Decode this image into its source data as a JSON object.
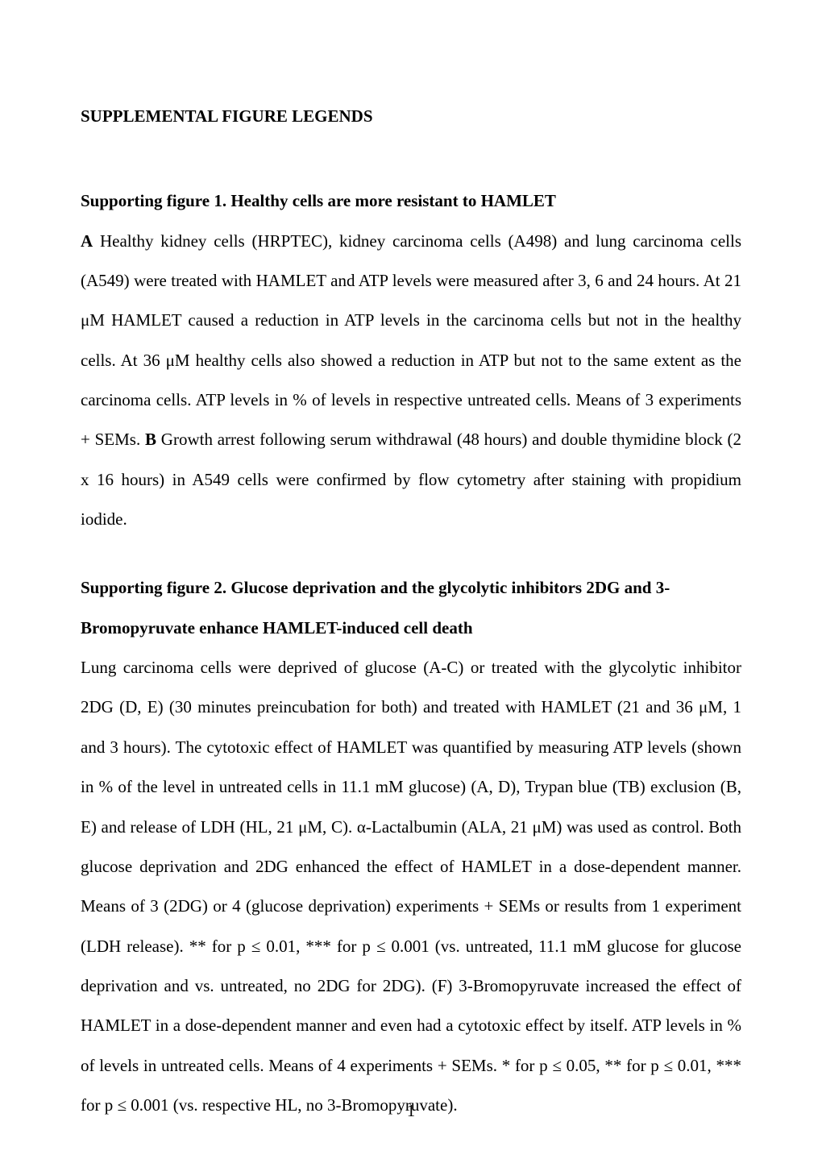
{
  "headings": {
    "main": "SUPPLEMENTAL FIGURE LEGENDS",
    "fig1": "Supporting figure 1. Healthy cells are more resistant to HAMLET",
    "fig2_line1": "Supporting figure 2. Glucose deprivation and the glycolytic inhibitors 2DG and 3-",
    "fig2_line2": "Bromopyruvate enhance HAMLET-induced cell death"
  },
  "fig1": {
    "labelA": "A",
    "textA": " Healthy kidney cells (HRPTEC), kidney carcinoma cells (A498) and lung carcinoma cells (A549) were treated with HAMLET and ATP levels were measured after 3, 6 and 24 hours. At 21 μM HAMLET caused a reduction in ATP levels in the carcinoma cells but not in the healthy cells. At 36 μM healthy cells also showed a reduction in ATP but not to the same extent as the carcinoma cells. ATP levels in % of levels in respective untreated cells. Means of 3 experiments + SEMs. ",
    "labelB": "B",
    "textB": " Growth arrest following serum withdrawal (48 hours) and double thymidine block (2 x 16 hours) in A549 cells were confirmed by flow cytometry after staining with propidium iodide."
  },
  "fig2": {
    "text": "Lung carcinoma cells were deprived of glucose (A-C) or treated with the glycolytic inhibitor 2DG (D, E) (30 minutes preincubation for both) and treated with HAMLET (21 and 36 μM, 1 and 3 hours). The cytotoxic effect of HAMLET was quantified by measuring ATP levels (shown in % of the level in untreated cells in 11.1 mM glucose) (A, D), Trypan blue (TB) exclusion (B, E) and release of LDH (HL, 21 μM, C). α-Lactalbumin (ALA, 21 μM) was used as control. Both glucose deprivation and 2DG enhanced the effect of HAMLET in a dose-dependent manner. Means of 3 (2DG) or 4 (glucose deprivation) experiments + SEMs or results from 1 experiment (LDH release). ** for p ≤ 0.01, *** for p ≤ 0.001 (vs. untreated, 11.1 mM glucose for glucose deprivation and vs. untreated, no 2DG for 2DG). (F) 3-Bromopyruvate increased the effect of HAMLET in a dose-dependent manner and even had a cytotoxic effect by itself. ATP levels in % of levels in untreated cells. Means of 4 experiments + SEMs. * for p ≤ 0.05, ** for p ≤ 0.01, *** for p ≤ 0.001 (vs. respective HL, no 3-Bromopyruvate)."
  },
  "page_number": "1"
}
